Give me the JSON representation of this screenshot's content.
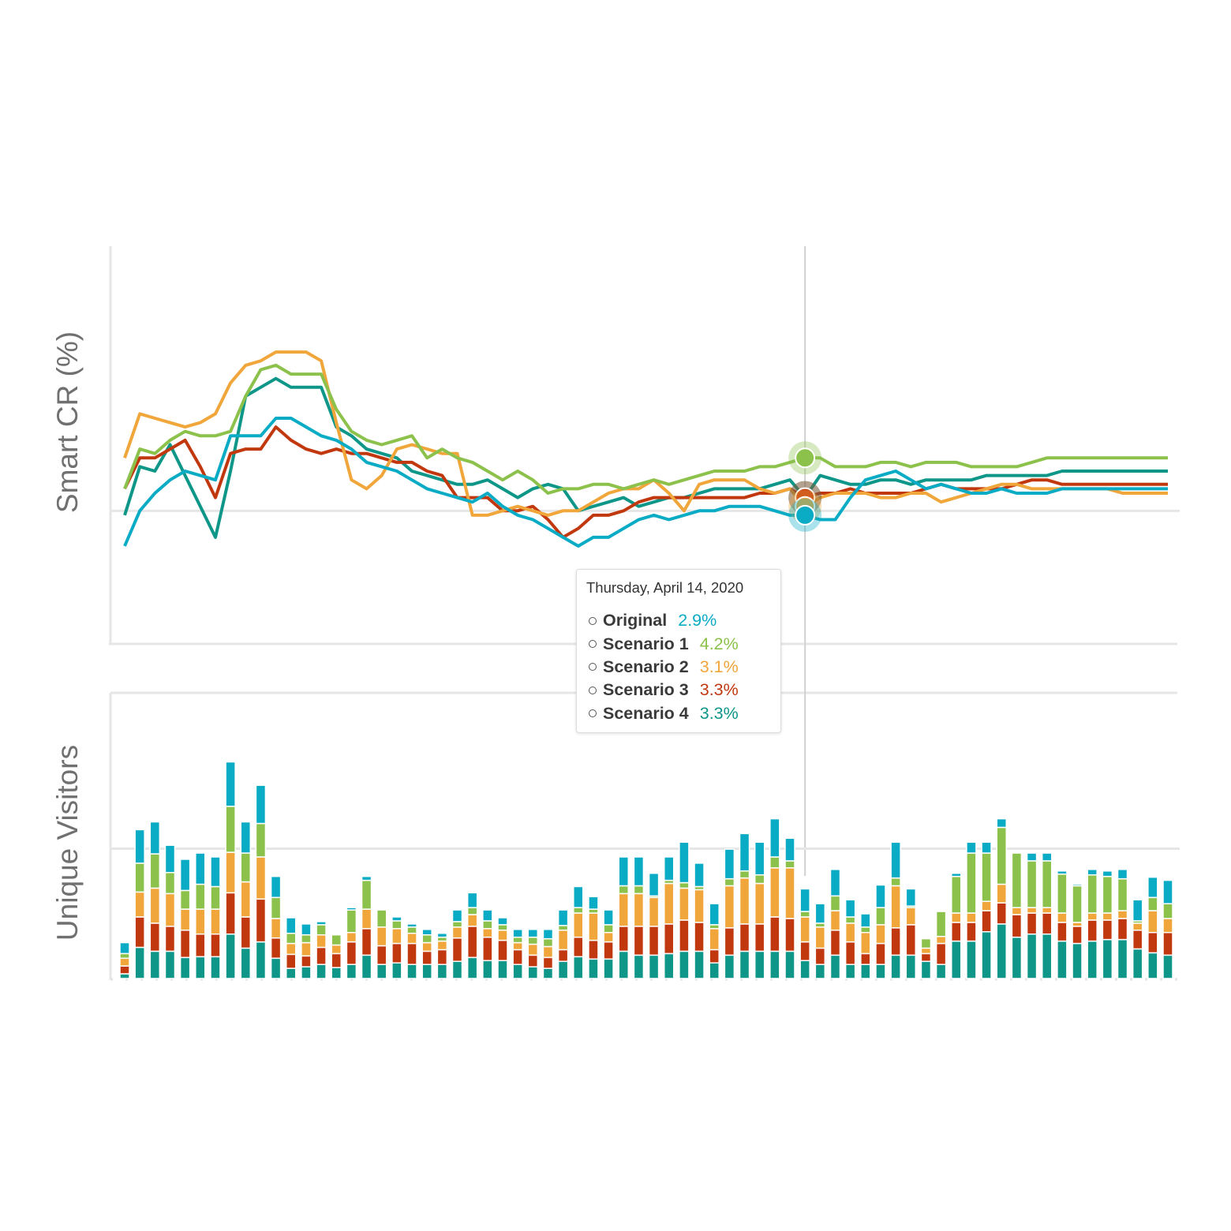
{
  "chart_data": [
    {
      "type": "line",
      "y_label": "Smart CR (%)",
      "ylim": [
        0,
        9
      ],
      "yticks": [
        3
      ],
      "grid": true,
      "categories": [
        null,
        null,
        null,
        null,
        null,
        null,
        null,
        null,
        null,
        null,
        null,
        null,
        null,
        null,
        null,
        null,
        null,
        null,
        null,
        null,
        null,
        null,
        null,
        null,
        null,
        null,
        null,
        null,
        null,
        null,
        null,
        null,
        null,
        null,
        null,
        null,
        null,
        null,
        null,
        null,
        null,
        null,
        null,
        null,
        null,
        "Thursday, April 14, 2020",
        null,
        null,
        null,
        null,
        null,
        null,
        null,
        null,
        null,
        null,
        null,
        null,
        null,
        null,
        null,
        null,
        null,
        null,
        null,
        null,
        null,
        null,
        null,
        null
      ],
      "series": [
        {
          "name": "Original",
          "color": "#0aabc4",
          "values": [
            2.2,
            3.0,
            3.4,
            3.7,
            3.9,
            3.8,
            3.7,
            4.7,
            4.7,
            4.7,
            5.1,
            5.1,
            4.9,
            4.7,
            4.6,
            4.4,
            4.1,
            4.0,
            3.9,
            3.7,
            3.5,
            3.4,
            3.3,
            3.2,
            3.4,
            3.1,
            2.9,
            2.8,
            2.6,
            2.4,
            2.2,
            2.4,
            2.4,
            2.6,
            2.8,
            2.9,
            2.8,
            2.9,
            3.0,
            3.0,
            3.1,
            3.1,
            3.1,
            3.0,
            2.9,
            2.9,
            2.8,
            2.8,
            3.3,
            3.7,
            3.8,
            3.9,
            3.7,
            3.5,
            3.6,
            3.5,
            3.4,
            3.4,
            3.5,
            3.4,
            3.4,
            3.4,
            3.5,
            3.5,
            3.5,
            3.5,
            3.5,
            3.5,
            3.5,
            3.5
          ]
        },
        {
          "name": "Scenario 1",
          "color": "#8cc14c",
          "values": [
            3.5,
            4.4,
            4.3,
            4.6,
            4.8,
            4.7,
            4.7,
            4.8,
            5.6,
            6.2,
            6.3,
            6.1,
            6.1,
            6.1,
            5.3,
            4.8,
            4.6,
            4.5,
            4.6,
            4.7,
            4.2,
            4.4,
            4.2,
            4.1,
            3.9,
            3.7,
            3.9,
            3.7,
            3.4,
            3.5,
            3.5,
            3.6,
            3.6,
            3.5,
            3.6,
            3.7,
            3.6,
            3.7,
            3.8,
            3.9,
            3.9,
            3.9,
            4.0,
            4.0,
            4.1,
            4.2,
            4.2,
            4.0,
            4.0,
            4.0,
            4.1,
            4.1,
            4.0,
            4.1,
            4.1,
            4.1,
            4.0,
            4.0,
            4.0,
            4.0,
            4.1,
            4.2,
            4.2,
            4.2,
            4.2,
            4.2,
            4.2,
            4.2,
            4.2,
            4.2
          ]
        },
        {
          "name": "Scenario 2",
          "color": "#f0a63a",
          "values": [
            4.2,
            5.2,
            5.1,
            5.0,
            4.9,
            5.0,
            5.2,
            5.9,
            6.3,
            6.4,
            6.6,
            6.6,
            6.6,
            6.4,
            5.0,
            3.7,
            3.5,
            3.8,
            4.4,
            4.5,
            4.4,
            4.3,
            4.3,
            2.9,
            2.9,
            3.0,
            3.1,
            3.0,
            2.9,
            3.0,
            3.0,
            3.2,
            3.4,
            3.5,
            3.5,
            3.7,
            3.4,
            3.0,
            3.6,
            3.7,
            3.7,
            3.7,
            3.5,
            3.4,
            3.5,
            3.1,
            3.3,
            3.4,
            3.4,
            3.4,
            3.3,
            3.3,
            3.4,
            3.4,
            3.2,
            3.3,
            3.4,
            3.5,
            3.6,
            3.6,
            3.5,
            3.5,
            3.5,
            3.5,
            3.5,
            3.5,
            3.4,
            3.4,
            3.4,
            3.4
          ]
        },
        {
          "name": "Scenario 3",
          "color": "#c1380f",
          "values": [
            3.5,
            4.2,
            4.2,
            4.4,
            4.6,
            4.0,
            3.3,
            4.3,
            4.4,
            4.4,
            4.9,
            4.6,
            4.4,
            4.3,
            4.4,
            4.3,
            4.3,
            4.2,
            4.1,
            4.1,
            3.9,
            3.8,
            3.3,
            3.3,
            3.3,
            3.0,
            3.0,
            3.1,
            2.8,
            2.4,
            2.6,
            2.9,
            2.9,
            3.0,
            3.2,
            3.3,
            3.3,
            3.3,
            3.3,
            3.3,
            3.3,
            3.3,
            3.4,
            3.4,
            3.5,
            3.3,
            3.4,
            3.4,
            3.5,
            3.4,
            3.4,
            3.4,
            3.4,
            3.5,
            3.6,
            3.5,
            3.5,
            3.5,
            3.5,
            3.6,
            3.7,
            3.7,
            3.6,
            3.6,
            3.6,
            3.6,
            3.6,
            3.6,
            3.6,
            3.6
          ]
        },
        {
          "name": "Scenario 4",
          "color": "#0e9688",
          "values": [
            2.9,
            4.0,
            3.9,
            4.5,
            3.8,
            3.1,
            2.4,
            3.9,
            5.6,
            5.8,
            6.0,
            5.8,
            5.8,
            5.8,
            4.9,
            4.7,
            4.4,
            4.3,
            4.2,
            3.9,
            3.8,
            3.7,
            3.6,
            3.6,
            3.7,
            3.5,
            3.3,
            3.5,
            3.6,
            3.5,
            3.0,
            3.1,
            3.2,
            3.3,
            3.1,
            3.2,
            3.3,
            3.3,
            3.4,
            3.5,
            3.5,
            3.5,
            3.5,
            3.6,
            3.7,
            3.3,
            3.8,
            3.7,
            3.6,
            3.6,
            3.7,
            3.7,
            3.6,
            3.7,
            3.7,
            3.7,
            3.7,
            3.8,
            3.8,
            3.8,
            3.8,
            3.8,
            3.9,
            3.9,
            3.9,
            3.9,
            3.9,
            3.9,
            3.9,
            3.9
          ]
        }
      ],
      "tooltip_labels": [
        "2.9%",
        "4.2%",
        "3.1%",
        "3.3%",
        "3.3%"
      ]
    },
    {
      "type": "bar",
      "stacked": true,
      "y_label": "Unique Visitors",
      "ylim": [
        0,
        2200
      ],
      "yticks": [
        1000
      ],
      "grid": true,
      "series": [
        {
          "color": "#0e9688",
          "values": [
            36,
            240,
            210,
            210,
            162,
            168,
            168,
            342,
            234,
            282,
            156,
            78,
            90,
            108,
            84,
            108,
            180,
            108,
            120,
            108,
            108,
            108,
            132,
            162,
            138,
            138,
            108,
            90,
            78,
            132,
            168,
            150,
            150,
            210,
            180,
            180,
            192,
            210,
            210,
            120,
            180,
            210,
            210,
            210,
            210,
            138,
            108,
            180,
            108,
            108,
            108,
            180,
            180,
            132,
            108,
            288,
            288,
            360,
            420,
            318,
            342,
            342,
            288,
            270,
            288,
            300,
            300,
            228,
            198,
            180
          ]
        },
        {
          "color": "#c1380f",
          "values": [
            60,
            234,
            216,
            192,
            210,
            174,
            174,
            318,
            240,
            330,
            156,
            108,
            84,
            132,
            108,
            174,
            204,
            144,
            150,
            162,
            102,
            114,
            180,
            240,
            180,
            156,
            114,
            90,
            84,
            90,
            150,
            144,
            132,
            192,
            222,
            222,
            228,
            240,
            222,
            102,
            210,
            210,
            210,
            264,
            252,
            144,
            126,
            192,
            174,
            84,
            162,
            210,
            234,
            60,
            162,
            144,
            144,
            162,
            162,
            174,
            162,
            162,
            144,
            132,
            162,
            150,
            162,
            144,
            156,
            174
          ]
        },
        {
          "color": "#f0a63a",
          "values": [
            60,
            192,
            270,
            252,
            162,
            192,
            192,
            312,
            270,
            324,
            150,
            84,
            102,
            96,
            66,
            72,
            150,
            144,
            114,
            78,
            66,
            66,
            84,
            90,
            66,
            78,
            54,
            84,
            84,
            150,
            186,
            210,
            72,
            252,
            252,
            222,
            312,
            246,
            252,
            162,
            324,
            354,
            312,
            378,
            390,
            192,
            162,
            150,
            144,
            162,
            144,
            324,
            132,
            42,
            54,
            72,
            72,
            72,
            144,
            54,
            42,
            42,
            72,
            30,
            54,
            54,
            60,
            54,
            168,
            108
          ]
        },
        {
          "color": "#8cc14c",
          "values": [
            36,
            222,
            264,
            162,
            144,
            192,
            174,
            354,
            222,
            258,
            162,
            78,
            60,
            78,
            78,
            174,
            222,
            132,
            60,
            48,
            60,
            30,
            42,
            54,
            60,
            42,
            42,
            54,
            60,
            36,
            42,
            30,
            60,
            60,
            60,
            12,
            24,
            42,
            24,
            30,
            54,
            54,
            66,
            84,
            54,
            42,
            30,
            114,
            48,
            42,
            132,
            60,
            12,
            72,
            192,
            282,
            462,
            372,
            438,
            420,
            360,
            360,
            300,
            282,
            294,
            282,
            246,
            18,
            102,
            114
          ]
        },
        {
          "color": "#0aabc4",
          "values": [
            84,
            258,
            246,
            210,
            240,
            240,
            228,
            342,
            240,
            294,
            162,
            120,
            84,
            24,
            0,
            18,
            30,
            0,
            30,
            24,
            42,
            30,
            90,
            114,
            84,
            54,
            60,
            60,
            72,
            120,
            162,
            96,
            114,
            222,
            222,
            174,
            180,
            312,
            180,
            162,
            228,
            288,
            252,
            294,
            174,
            174,
            150,
            204,
            132,
            102,
            174,
            276,
            132,
            0,
            0,
            24,
            84,
            84,
            66,
            0,
            60,
            60,
            24,
            12,
            42,
            42,
            72,
            162,
            156,
            180
          ]
        }
      ]
    }
  ]
}
